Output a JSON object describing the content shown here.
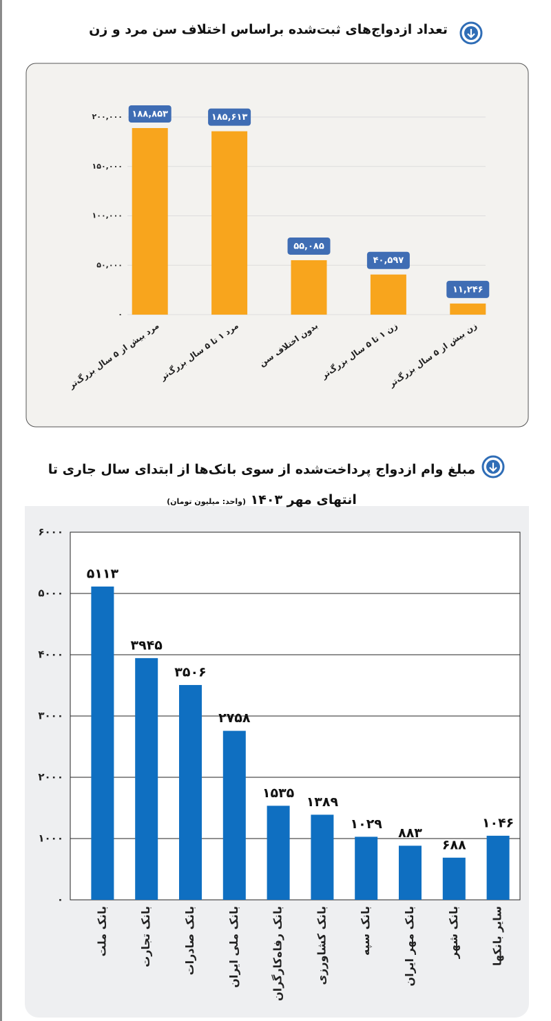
{
  "chart_data": [
    {
      "type": "bar",
      "title": "تعداد ازدواج‌های ثبت‌شده براساس اختلاف سن مرد و زن",
      "categories": [
        "مرد بیش از ۵ سال بزرگ‌تر",
        "مرد ۱ تا ۵ سال بزرگ‌تر",
        "بدون اختلاف سن",
        "زن ۱ تا ۵ سال بزرگ‌تر",
        "زن بیش از ۵ سال بزرگ‌تر"
      ],
      "values": [
        188853,
        185613,
        55085,
        40597,
        11246
      ],
      "value_labels": [
        "۱۸۸,۸۵۳",
        "۱۸۵,۶۱۳",
        "۵۵,۰۸۵",
        "۴۰,۵۹۷",
        "۱۱,۲۴۶"
      ],
      "color": "#f8a51d",
      "value_label_box_color": "#3f6db4",
      "ylim": [
        0,
        200000
      ],
      "yticks": [
        {
          "value": 0,
          "label": "۰"
        },
        {
          "value": 50000,
          "label": "۵۰,۰۰۰"
        },
        {
          "value": 100000,
          "label": "۱۰۰,۰۰۰"
        },
        {
          "value": 150000,
          "label": "۱۵۰,۰۰۰"
        },
        {
          "value": 200000,
          "label": "۲۰۰,۰۰۰"
        }
      ],
      "grid": true
    },
    {
      "type": "bar",
      "title": "مبلغ وام ازدواج پرداخت‌شده از سوی بانک‌ها از ابتدای سال جاری تا انتهای مهر ۱۴۰۳",
      "subtitle": "(واحد: میلیون تومان)",
      "categories": [
        "بانک ملت",
        "بانک تجارت",
        "بانک صادرات",
        "بانک ملی ایران",
        "بانک رفاه‌کارگران",
        "بانک کشاورزی",
        "بانک سپه",
        "بانک مهر ایران",
        "بانک شهر",
        "سایر بانکها"
      ],
      "values": [
        5113,
        3945,
        3506,
        2758,
        1535,
        1389,
        1029,
        883,
        688,
        1046
      ],
      "value_labels": [
        "۵۱۱۳",
        "۳۹۴۵",
        "۳۵۰۶",
        "۲۷۵۸",
        "۱۵۳۵",
        "۱۳۸۹",
        "۱۰۲۹",
        "۸۸۳",
        "۶۸۸",
        "۱۰۴۶"
      ],
      "color": "#0f6fc1",
      "ylim": [
        0,
        6000
      ],
      "yticks": [
        {
          "value": 0,
          "label": "۰"
        },
        {
          "value": 1000,
          "label": "۱۰۰۰"
        },
        {
          "value": 2000,
          "label": "۲۰۰۰"
        },
        {
          "value": 3000,
          "label": "۳۰۰۰"
        },
        {
          "value": 4000,
          "label": "۴۰۰۰"
        },
        {
          "value": 5000,
          "label": "۵۰۰۰"
        },
        {
          "value": 6000,
          "label": "۶۰۰۰"
        }
      ],
      "grid": true
    }
  ]
}
